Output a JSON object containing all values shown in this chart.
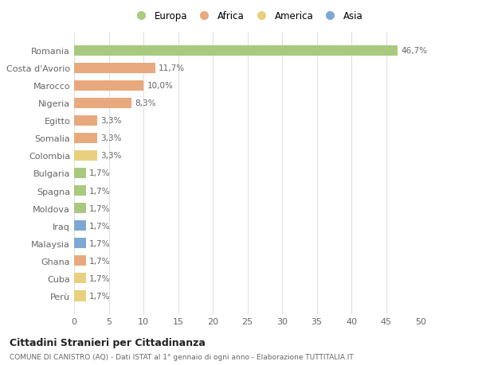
{
  "countries": [
    "Romania",
    "Costa d'Avorio",
    "Marocco",
    "Nigeria",
    "Egitto",
    "Somalia",
    "Colombia",
    "Bulgaria",
    "Spagna",
    "Moldova",
    "Iraq",
    "Malaysia",
    "Ghana",
    "Cuba",
    "Perù"
  ],
  "values": [
    46.7,
    11.7,
    10.0,
    8.3,
    3.3,
    3.3,
    3.3,
    1.7,
    1.7,
    1.7,
    1.7,
    1.7,
    1.7,
    1.7,
    1.7
  ],
  "labels": [
    "46,7%",
    "11,7%",
    "10,0%",
    "8,3%",
    "3,3%",
    "3,3%",
    "3,3%",
    "1,7%",
    "1,7%",
    "1,7%",
    "1,7%",
    "1,7%",
    "1,7%",
    "1,7%",
    "1,7%"
  ],
  "continents": [
    "Europa",
    "Africa",
    "Africa",
    "Africa",
    "Africa",
    "Africa",
    "America",
    "Europa",
    "Europa",
    "Europa",
    "Asia",
    "Asia",
    "Africa",
    "America",
    "America"
  ],
  "colors": {
    "Europa": "#a8c97f",
    "Africa": "#e8a97e",
    "America": "#e8d07e",
    "Asia": "#7ea8d4"
  },
  "legend_labels": [
    "Europa",
    "Africa",
    "America",
    "Asia"
  ],
  "legend_colors": [
    "#a8c97f",
    "#e8a97e",
    "#e8d07e",
    "#7ea8d4"
  ],
  "title": "Cittadini Stranieri per Cittadinanza",
  "subtitle": "COMUNE DI CANISTRO (AQ) - Dati ISTAT al 1° gennaio di ogni anno - Elaborazione TUTTITALIA.IT",
  "xlim": [
    0,
    50
  ],
  "xticks": [
    0,
    5,
    10,
    15,
    20,
    25,
    30,
    35,
    40,
    45,
    50
  ],
  "background_color": "#ffffff",
  "grid_color": "#e0e0e0"
}
